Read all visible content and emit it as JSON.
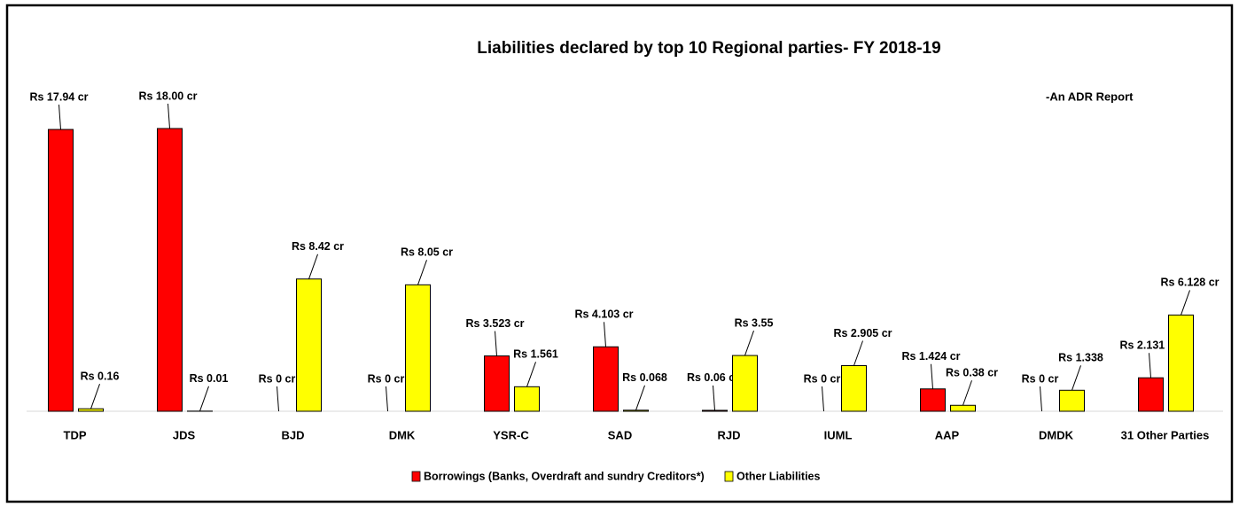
{
  "chart_data": {
    "type": "bar",
    "title": "Liabilities declared by top 10 Regional parties- FY 2018-19",
    "annotation": "-An ADR Report",
    "categories": [
      "TDP",
      "JDS",
      "BJD",
      "DMK",
      "YSR-C",
      "SAD",
      "RJD",
      "IUML",
      "AAP",
      "DMDK",
      "31 Other Parties"
    ],
    "series": [
      {
        "name": "Borrowings (Banks, Overdraft and  sundry Creditors*)",
        "color": "#ff0000",
        "values": [
          17.94,
          18.0,
          0,
          0,
          3.523,
          4.103,
          0.06,
          0,
          1.424,
          0,
          2.131
        ],
        "value_labels": [
          "Rs 17.94 cr",
          "Rs 18.00 cr",
          "Rs 0 cr",
          "Rs 0 cr",
          "Rs 3.523 cr",
          "Rs 4.103 cr",
          "Rs 0.06 cr",
          "Rs 0 cr",
          "Rs 1.424 cr",
          "Rs 0 cr",
          "Rs 2.131 cr"
        ]
      },
      {
        "name": "Other Liabilities",
        "color": "#ffff00",
        "values": [
          0.16,
          0.01,
          8.42,
          8.05,
          1.561,
          0.068,
          3.55,
          2.905,
          0.38,
          1.338,
          6.128
        ],
        "value_labels": [
          "Rs 0.16",
          "Rs 0.01",
          "Rs 8.42 cr",
          "Rs 8.05 cr",
          "Rs 1.561",
          "Rs 0.068",
          "Rs 3.55",
          "Rs 2.905 cr",
          "Rs 0.38 cr",
          "Rs 1.338",
          "Rs 6.128 cr"
        ]
      }
    ],
    "legend": "bottom"
  }
}
